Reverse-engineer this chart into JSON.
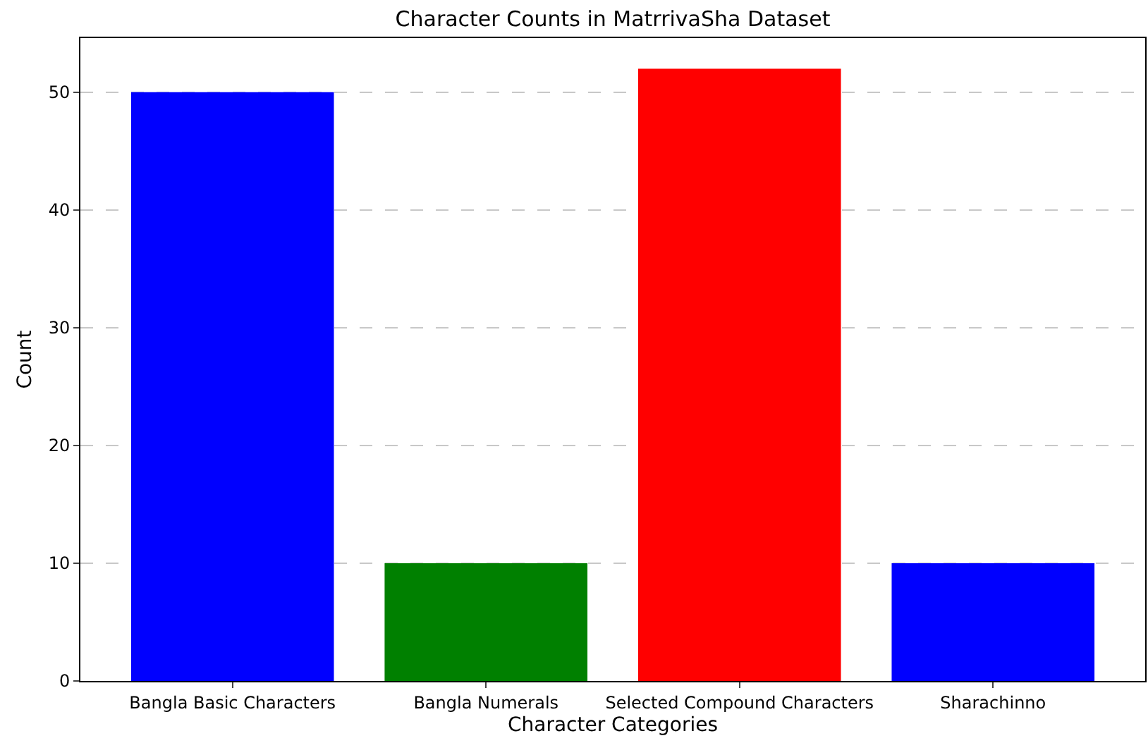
{
  "chart_data": {
    "type": "bar",
    "title": "Character Counts in MatrrivaSha Dataset",
    "xlabel": "Character Categories",
    "ylabel": "Count",
    "categories": [
      "Bangla Basic Characters",
      "Bangla Numerals",
      "Selected Compound Characters",
      "Sharachinno"
    ],
    "values": [
      50,
      10,
      52,
      10
    ],
    "colors": [
      "#0000ff",
      "#008000",
      "#ff0000",
      "#0000ff"
    ],
    "ylim": [
      0,
      54.6
    ],
    "yticks": [
      0,
      10,
      20,
      30,
      40,
      50
    ],
    "grid": "y"
  }
}
